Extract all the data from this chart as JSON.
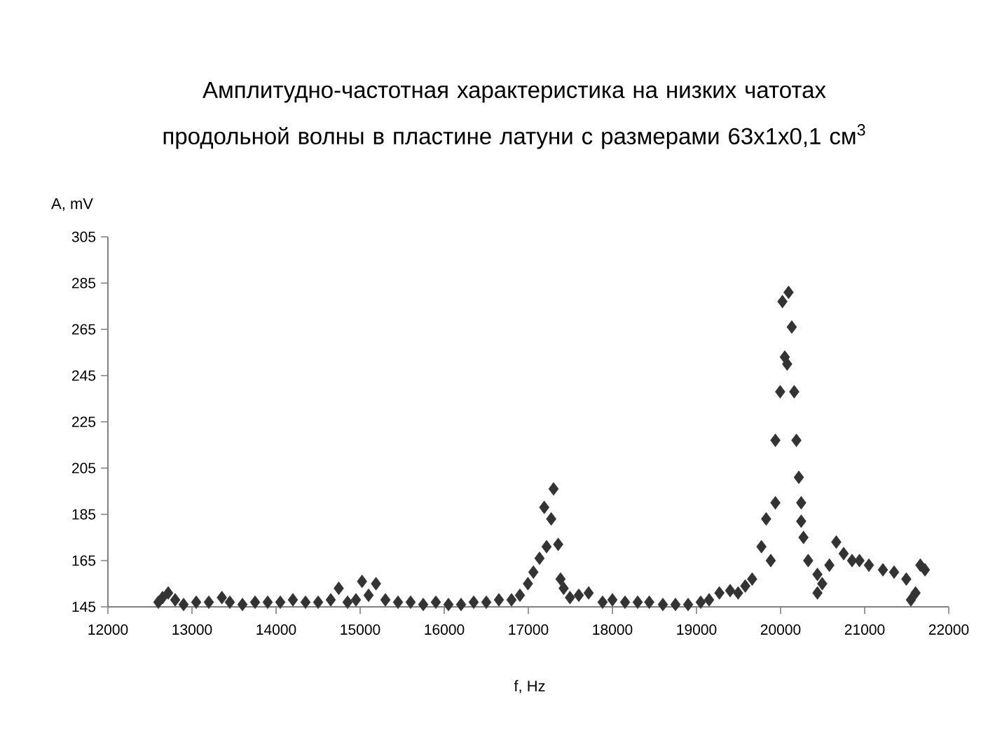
{
  "chart_data": {
    "type": "scatter",
    "title": "Амплитудно-частотная характеристика на низких чатотах продольной волны в пластине латуни с размерами 63x1x0,1 см$^{3}$",
    "xlabel": "f, Hz",
    "ylabel": "A, mV",
    "color": "#333333",
    "marker": "diamond",
    "x": [
      12600,
      12650,
      12717,
      12800,
      12900,
      13050,
      13200,
      13355,
      13450,
      13600,
      13750,
      13900,
      14050,
      14200,
      14350,
      14500,
      14650,
      14745,
      14850,
      14950,
      15022,
      15100,
      15188,
      15300,
      15450,
      15600,
      15750,
      15900,
      16050,
      16200,
      16350,
      16500,
      16650,
      16800,
      16900,
      16995,
      17060,
      17133,
      17189,
      17217,
      17272,
      17300,
      17355,
      17383,
      17420,
      17495,
      17600,
      17717,
      17883,
      18000,
      18150,
      18300,
      18438,
      18600,
      18750,
      18900,
      19050,
      19150,
      19272,
      19400,
      19495,
      19580,
      19662,
      19772,
      19828,
      19883,
      19938,
      19938,
      19995,
      20022,
      20050,
      20078,
      20095,
      20133,
      20162,
      20188,
      20217,
      20245,
      20245,
      20272,
      20328,
      20438,
      20438,
      20495,
      20580,
      20662,
      20750,
      20850,
      20938,
      21050,
      21217,
      21350,
      21495,
      21550,
      21605,
      21662,
      21717
    ],
    "values": [
      147,
      149,
      151,
      148,
      146,
      147,
      147,
      149,
      147,
      146,
      147,
      147,
      147,
      148,
      147,
      147,
      148,
      153,
      147,
      148,
      156,
      150,
      155,
      148,
      147,
      147,
      146,
      147,
      146,
      146,
      147,
      147,
      148,
      148,
      150,
      155,
      160,
      166,
      188,
      171,
      183,
      196,
      172,
      157,
      153,
      149,
      150,
      151,
      147,
      148,
      147,
      147,
      147,
      146,
      146,
      146,
      147,
      148,
      151,
      152,
      151,
      154,
      157,
      171,
      183,
      165,
      217,
      190,
      238,
      277,
      253,
      250,
      281,
      266,
      238,
      217,
      201,
      190,
      182,
      175,
      165,
      159,
      151,
      155,
      163,
      173,
      168,
      165,
      165,
      163,
      161,
      160,
      157,
      148,
      151,
      163,
      161
    ],
    "xlim": [
      12000,
      22000
    ],
    "ylim": [
      145,
      305
    ],
    "xticks": [
      12000,
      13000,
      14000,
      15000,
      16000,
      17000,
      18000,
      19000,
      20000,
      21000,
      22000
    ],
    "yticks": [
      145,
      165,
      185,
      205,
      225,
      245,
      265,
      285,
      305
    ]
  }
}
